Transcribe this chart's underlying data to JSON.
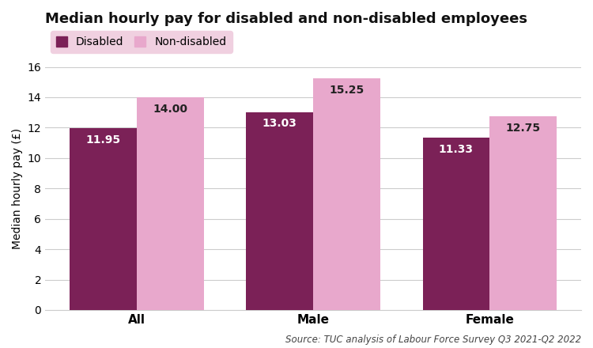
{
  "title": "Median hourly pay for disabled and non-disabled employees",
  "ylabel": "Median hourly pay (£)",
  "source": "Source: TUC analysis of Labour Force Survey Q3 2021-Q2 2022",
  "categories": [
    "All",
    "Male",
    "Female"
  ],
  "disabled_values": [
    11.95,
    13.03,
    11.33
  ],
  "nondisabled_values": [
    14.0,
    15.25,
    12.75
  ],
  "disabled_color": "#7b2157",
  "nondisabled_color": "#e8a8cc",
  "bar_width": 0.38,
  "ylim": [
    0,
    16
  ],
  "yticks": [
    0,
    2,
    4,
    6,
    8,
    10,
    12,
    14,
    16
  ],
  "label_disabled": "Disabled",
  "label_nondisabled": "Non-disabled",
  "background_color": "#ffffff",
  "legend_bg_color": "#f0d0e0",
  "grid_color": "#cccccc",
  "title_fontsize": 13,
  "axis_label_fontsize": 10,
  "tick_fontsize": 10,
  "bar_label_fontsize": 10,
  "legend_fontsize": 10,
  "source_fontsize": 8.5,
  "category_fontsize": 11
}
